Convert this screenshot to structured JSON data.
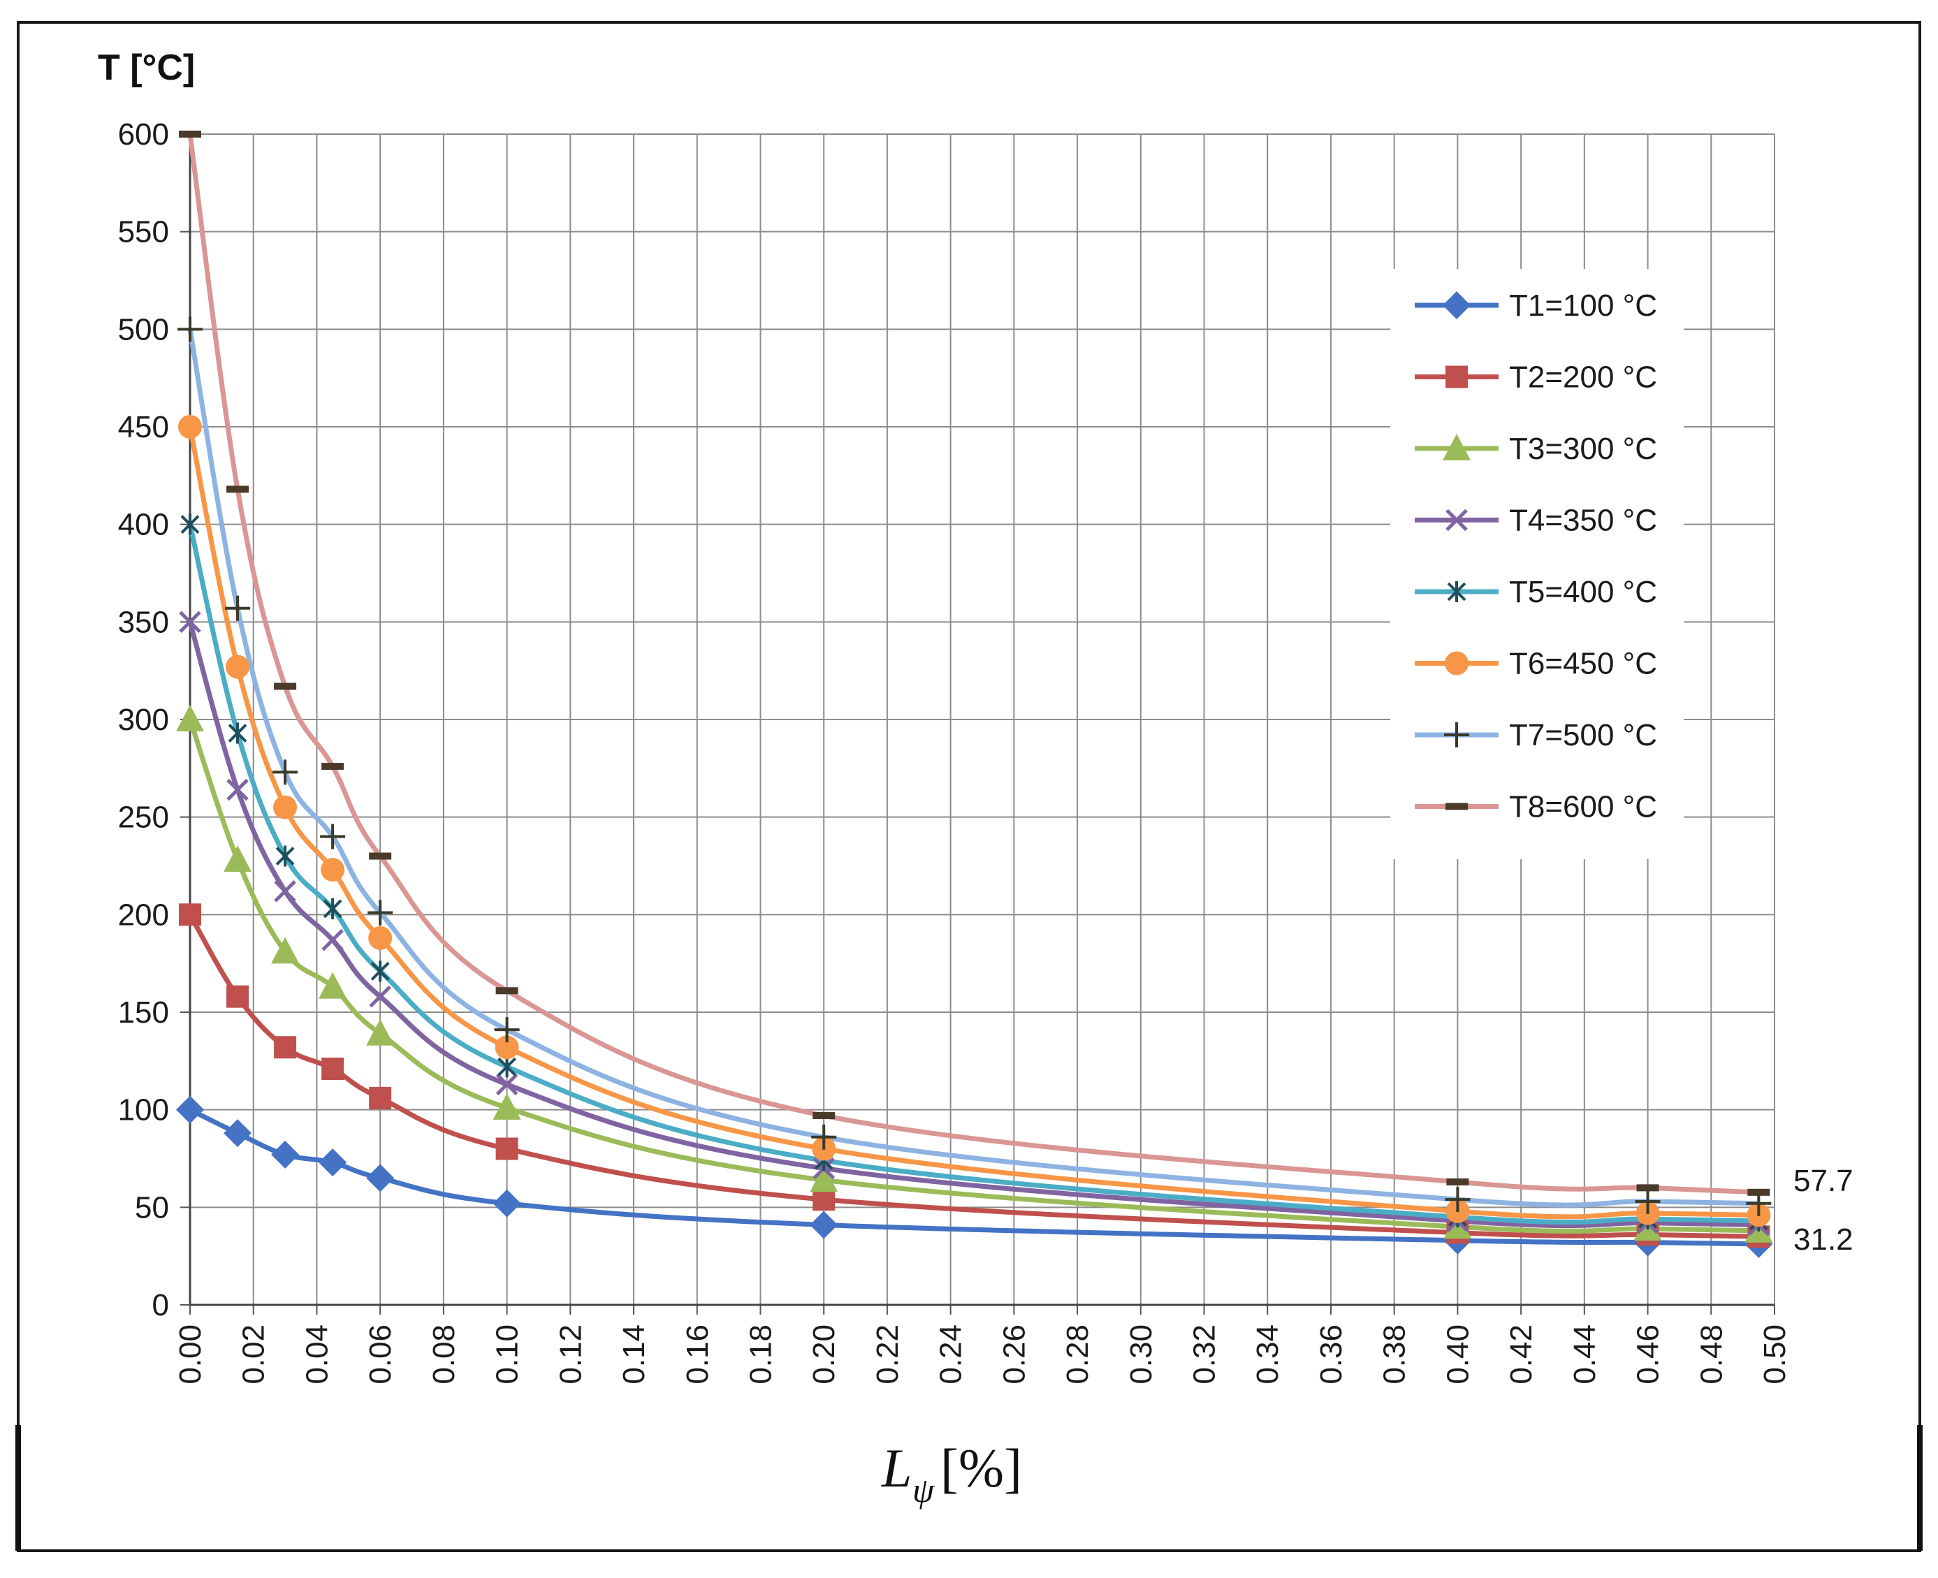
{
  "chart_data": {
    "type": "line",
    "title": "",
    "ylabel": "T [°C]",
    "xlabel": {
      "symbol": "L",
      "subscript": "ψ",
      "unit": "[%]"
    },
    "ylim": [
      0,
      600
    ],
    "xlim": [
      0,
      0.5
    ],
    "yticks": [
      0,
      50,
      100,
      150,
      200,
      250,
      300,
      350,
      400,
      450,
      500,
      550,
      600
    ],
    "xticks": [
      "0.00",
      "0.02",
      "0.04",
      "0.06",
      "0.08",
      "0.10",
      "0.12",
      "0.14",
      "0.16",
      "0.18",
      "0.20",
      "0.22",
      "0.24",
      "0.26",
      "0.28",
      "0.30",
      "0.32",
      "0.34",
      "0.36",
      "0.38",
      "0.40",
      "0.42",
      "0.44",
      "0.46",
      "0.48",
      "0.50"
    ],
    "grid": true,
    "legend_position": "top-right",
    "x": [
      0.0,
      0.015,
      0.03,
      0.045,
      0.06,
      0.1,
      0.2,
      0.4,
      0.46,
      0.495
    ],
    "series": [
      {
        "name": "T1=100 °C",
        "color": "#4472c4",
        "marker": "diamond",
        "values": [
          100,
          88,
          77,
          73,
          65,
          52,
          41,
          33,
          32,
          31.2
        ]
      },
      {
        "name": "T2=200 °C",
        "color": "#c0504d",
        "marker": "square",
        "values": [
          200,
          158,
          132,
          121,
          106,
          80,
          54,
          37,
          36,
          35
        ]
      },
      {
        "name": "T3=300 °C",
        "color": "#9bbb59",
        "marker": "triangle",
        "values": [
          300,
          228,
          181,
          163,
          139,
          101,
          64,
          40,
          39,
          38
        ]
      },
      {
        "name": "T4=350 °C",
        "color": "#8064a2",
        "marker": "x",
        "values": [
          350,
          264,
          212,
          187,
          158,
          113,
          70,
          43,
          42,
          41
        ]
      },
      {
        "name": "T5=400 °C",
        "color": "#4bacc6",
        "marker": "asterisk",
        "values": [
          400,
          293,
          230,
          203,
          171,
          122,
          74,
          45,
          44,
          43
        ]
      },
      {
        "name": "T6=450 °C",
        "color": "#f79646",
        "marker": "circle",
        "values": [
          450,
          327,
          255,
          223,
          188,
          132,
          80,
          48,
          47,
          46
        ]
      },
      {
        "name": "T7=500 °C",
        "color": "#8db3e2",
        "marker": "plus",
        "values": [
          500,
          357,
          273,
          240,
          201,
          141,
          86,
          54,
          53,
          52
        ]
      },
      {
        "name": "T8=600 °C",
        "color": "#d99694",
        "marker": "dash",
        "values": [
          600,
          418,
          317,
          276,
          230,
          161,
          97,
          63,
          60,
          57.7
        ]
      }
    ],
    "annotations": [
      {
        "text": "57.7",
        "x": 0.495,
        "y": 57.7
      },
      {
        "text": "31.2",
        "x": 0.495,
        "y": 31.2
      }
    ]
  }
}
